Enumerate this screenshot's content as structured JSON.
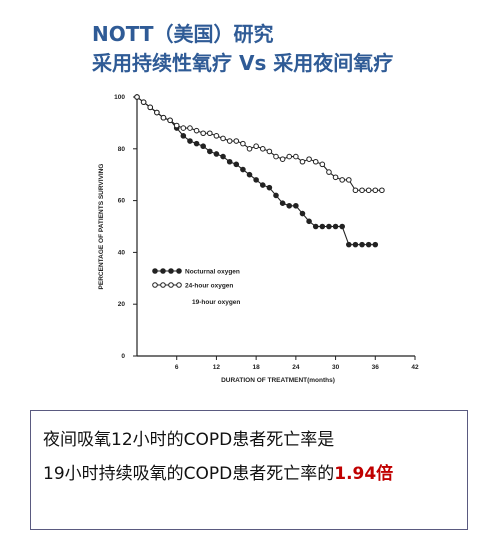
{
  "slide": {
    "title_line1": "NOTT（美国）研究",
    "title_line2": "采用持续性氧疗 Vs 采用夜间氧疗"
  },
  "chart_data": {
    "type": "line",
    "xlabel": "DURATION OF TREATMENT(months)",
    "ylabel": "PERCENTAGE OF PATIENTS SURVIVING",
    "annotation": "19-hour oxygen",
    "xlim": [
      0,
      42
    ],
    "xticks": [
      6,
      12,
      18,
      24,
      30,
      36,
      42
    ],
    "ylim": [
      0,
      100
    ],
    "yticks": [
      0,
      20,
      40,
      60,
      80,
      100
    ],
    "legend_position": "lower-left",
    "color": "#222222",
    "series": [
      {
        "name": "Nocturnal oxygen",
        "marker": "filled",
        "x": [
          0,
          1,
          2,
          3,
          4,
          5,
          6,
          7,
          8,
          9,
          10,
          11,
          12,
          13,
          14,
          15,
          16,
          17,
          18,
          19,
          20,
          21,
          22,
          23,
          24,
          25,
          26,
          27,
          28,
          29,
          30,
          31,
          32,
          33,
          34,
          35,
          36
        ],
        "values": [
          100,
          98,
          96,
          94,
          92,
          91,
          88,
          85,
          83,
          82,
          81,
          79,
          78,
          77,
          75,
          74,
          72,
          70,
          68,
          66,
          65,
          62,
          59,
          58,
          58,
          55,
          52,
          50,
          50,
          50,
          50,
          50,
          43,
          43,
          43,
          43,
          43
        ]
      },
      {
        "name": "24-hour oxygen",
        "marker": "hollow",
        "x": [
          0,
          1,
          2,
          3,
          4,
          5,
          6,
          7,
          8,
          9,
          10,
          11,
          12,
          13,
          14,
          15,
          16,
          17,
          18,
          19,
          20,
          21,
          22,
          23,
          24,
          25,
          26,
          27,
          28,
          29,
          30,
          31,
          32,
          33,
          34,
          35,
          36,
          37
        ],
        "values": [
          100,
          98,
          96,
          94,
          92,
          91,
          89,
          88,
          88,
          87,
          86,
          86,
          85,
          84,
          83,
          83,
          82,
          80,
          81,
          80,
          79,
          77,
          76,
          77,
          77,
          75,
          76,
          75,
          74,
          71,
          69,
          68,
          68,
          64,
          64,
          64,
          64,
          64
        ]
      }
    ]
  },
  "textbox": {
    "line1": "夜间吸氧12小时的COPD患者死亡率是",
    "line2": "19小时持续吸氧的COPD患者死亡率的",
    "highlight": "1.94倍"
  }
}
